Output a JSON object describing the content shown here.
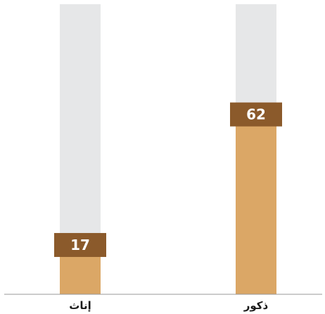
{
  "chart_data": {
    "type": "bar",
    "categories": [
      "إناث",
      "ذكور"
    ],
    "values": [
      17,
      62
    ],
    "ylim": [
      0,
      100
    ],
    "grid": false,
    "legend": "none",
    "colors": {
      "track": "#e6e7e8",
      "fill": "#dba766",
      "label_box": "#8b5a2b",
      "label_text": "#ffffff",
      "axis": "#9a9a9a"
    }
  }
}
